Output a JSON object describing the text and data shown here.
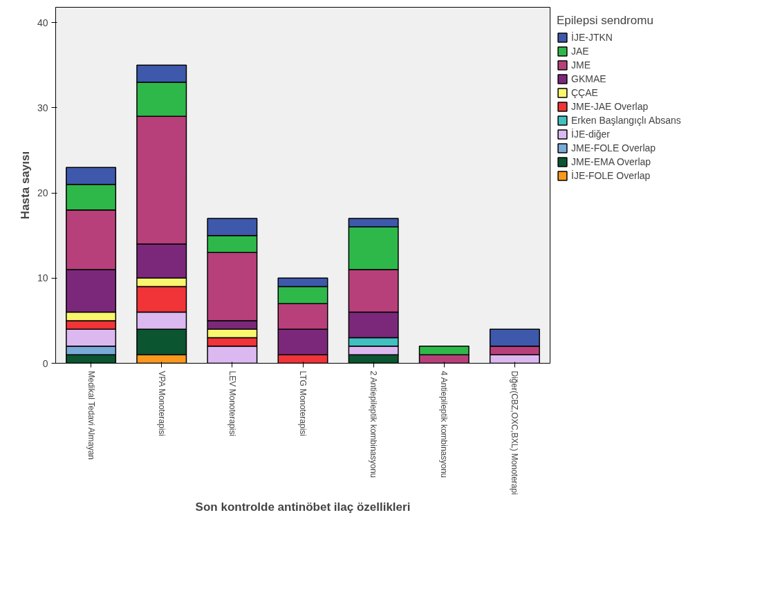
{
  "chart_data": {
    "type": "bar",
    "stacked": true,
    "xlabel": "Son kontrolde antinöbet ilaç özellikleri",
    "ylabel": "Hasta sayısı",
    "legend_title": "Epilepsi sendromu",
    "legend": "right",
    "grid": false,
    "categories": [
      "Medikal Tedavi Almayan",
      "VPA Monoterapisi",
      "LEV Monoterapisi",
      "LTG Monoterapisi",
      "2 Antiepileptik kombinasyonu",
      "4 Antiepileptik kombinasyonu",
      "Diğer(CBZ,OXC,BXL) Monoterapi"
    ],
    "ylim": [
      0,
      41.8
    ],
    "yticks": [
      0,
      10,
      20,
      30,
      40
    ],
    "series": [
      {
        "name": "İJE-FOLE Overlap",
        "color": "#f8981d",
        "values": [
          0,
          1,
          0,
          0,
          0,
          0,
          0
        ]
      },
      {
        "name": "JME-EMA Overlap",
        "color": "#0b5530",
        "values": [
          1,
          3,
          0,
          0,
          1,
          0,
          0
        ]
      },
      {
        "name": "JME-FOLE Overlap",
        "color": "#7aaad8",
        "values": [
          1,
          0,
          0,
          0,
          0,
          0,
          0
        ]
      },
      {
        "name": "İJE-diğer",
        "color": "#dcb8f0",
        "values": [
          2,
          2,
          2,
          0,
          1,
          0,
          1
        ]
      },
      {
        "name": "Erken Başlangıçlı Absans",
        "color": "#42c0c0",
        "values": [
          0,
          0,
          0,
          0,
          1,
          0,
          0
        ]
      },
      {
        "name": "JME-JAE Overlap",
        "color": "#f03438",
        "values": [
          1,
          3,
          1,
          1,
          0,
          0,
          0
        ]
      },
      {
        "name": "ÇÇAE",
        "color": "#f8f56e",
        "values": [
          1,
          1,
          1,
          0,
          0,
          0,
          0
        ]
      },
      {
        "name": "GKMAE",
        "color": "#7b287b",
        "values": [
          5,
          4,
          1,
          3,
          3,
          0,
          0
        ]
      },
      {
        "name": "JME",
        "color": "#b8407a",
        "values": [
          7,
          15,
          8,
          3,
          5,
          1,
          1
        ]
      },
      {
        "name": "JAE",
        "color": "#2fb84a",
        "values": [
          3,
          4,
          2,
          2,
          5,
          1,
          0
        ]
      },
      {
        "name": "İJE-JTKN",
        "color": "#3e58ac",
        "values": [
          2,
          2,
          2,
          1,
          1,
          0,
          2
        ]
      }
    ]
  }
}
